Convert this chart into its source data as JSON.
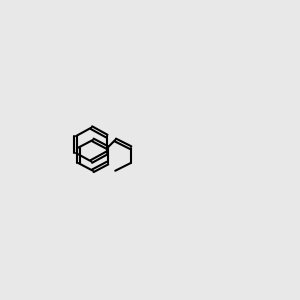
{
  "bg_color": "#e8e8e8",
  "bond_color": "#000000",
  "N_color": "#0000ff",
  "O_color": "#ff0000",
  "figsize": [
    3.0,
    3.0
  ],
  "dpi": 100,
  "lw": 1.5,
  "font_size": 9
}
